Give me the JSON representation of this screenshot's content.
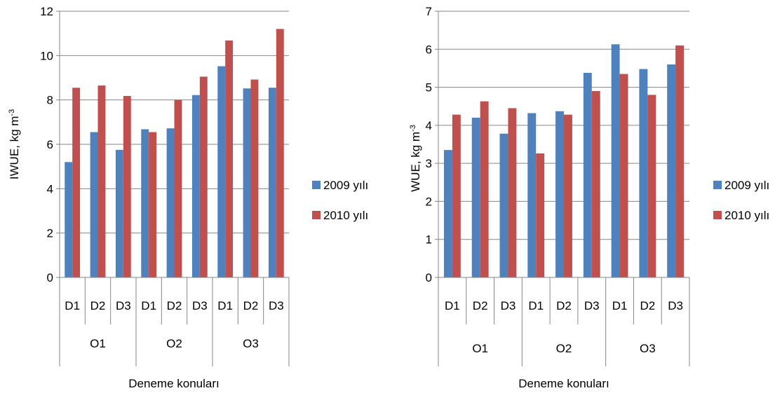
{
  "colors": {
    "series_2009": "#4F81BD",
    "series_2010": "#C0504D",
    "axis": "#868686",
    "grid": "#868686"
  },
  "chart_data": [
    {
      "type": "bar",
      "ylabel": "IWUE, kg m-3",
      "xlabel": "Deneme konuları",
      "ylim": [
        0,
        12
      ],
      "yticks": [
        0,
        2,
        4,
        6,
        8,
        10,
        12
      ],
      "grid": true,
      "legend_position": "right",
      "groups": [
        "O1",
        "O2",
        "O3"
      ],
      "categories": [
        "D1",
        "D2",
        "D3",
        "D1",
        "D2",
        "D3",
        "D1",
        "D2",
        "D3"
      ],
      "series": [
        {
          "name": "2009 yılı",
          "values": [
            5.2,
            6.55,
            5.75,
            6.68,
            6.72,
            8.22,
            9.52,
            8.52,
            8.55
          ]
        },
        {
          "name": "2010 yılı",
          "values": [
            8.55,
            8.65,
            8.18,
            6.55,
            8.0,
            9.05,
            10.68,
            8.92,
            11.2
          ]
        }
      ]
    },
    {
      "type": "bar",
      "ylabel": "WUE, kg m-3",
      "xlabel": "Deneme konuları",
      "ylim": [
        0,
        7
      ],
      "yticks": [
        0,
        1,
        2,
        3,
        4,
        5,
        6,
        7
      ],
      "grid": true,
      "legend_position": "right",
      "groups": [
        "O1",
        "O2",
        "O3"
      ],
      "categories": [
        "D1",
        "D2",
        "D3",
        "D1",
        "D2",
        "D3",
        "D1",
        "D2",
        "D3"
      ],
      "series": [
        {
          "name": "2009 yılı",
          "values": [
            3.35,
            4.2,
            3.78,
            4.32,
            4.37,
            5.38,
            6.13,
            5.48,
            5.6
          ]
        },
        {
          "name": "2010 yılı",
          "values": [
            4.28,
            4.63,
            4.45,
            3.26,
            4.28,
            4.9,
            5.35,
            4.8,
            6.1
          ]
        }
      ]
    }
  ]
}
